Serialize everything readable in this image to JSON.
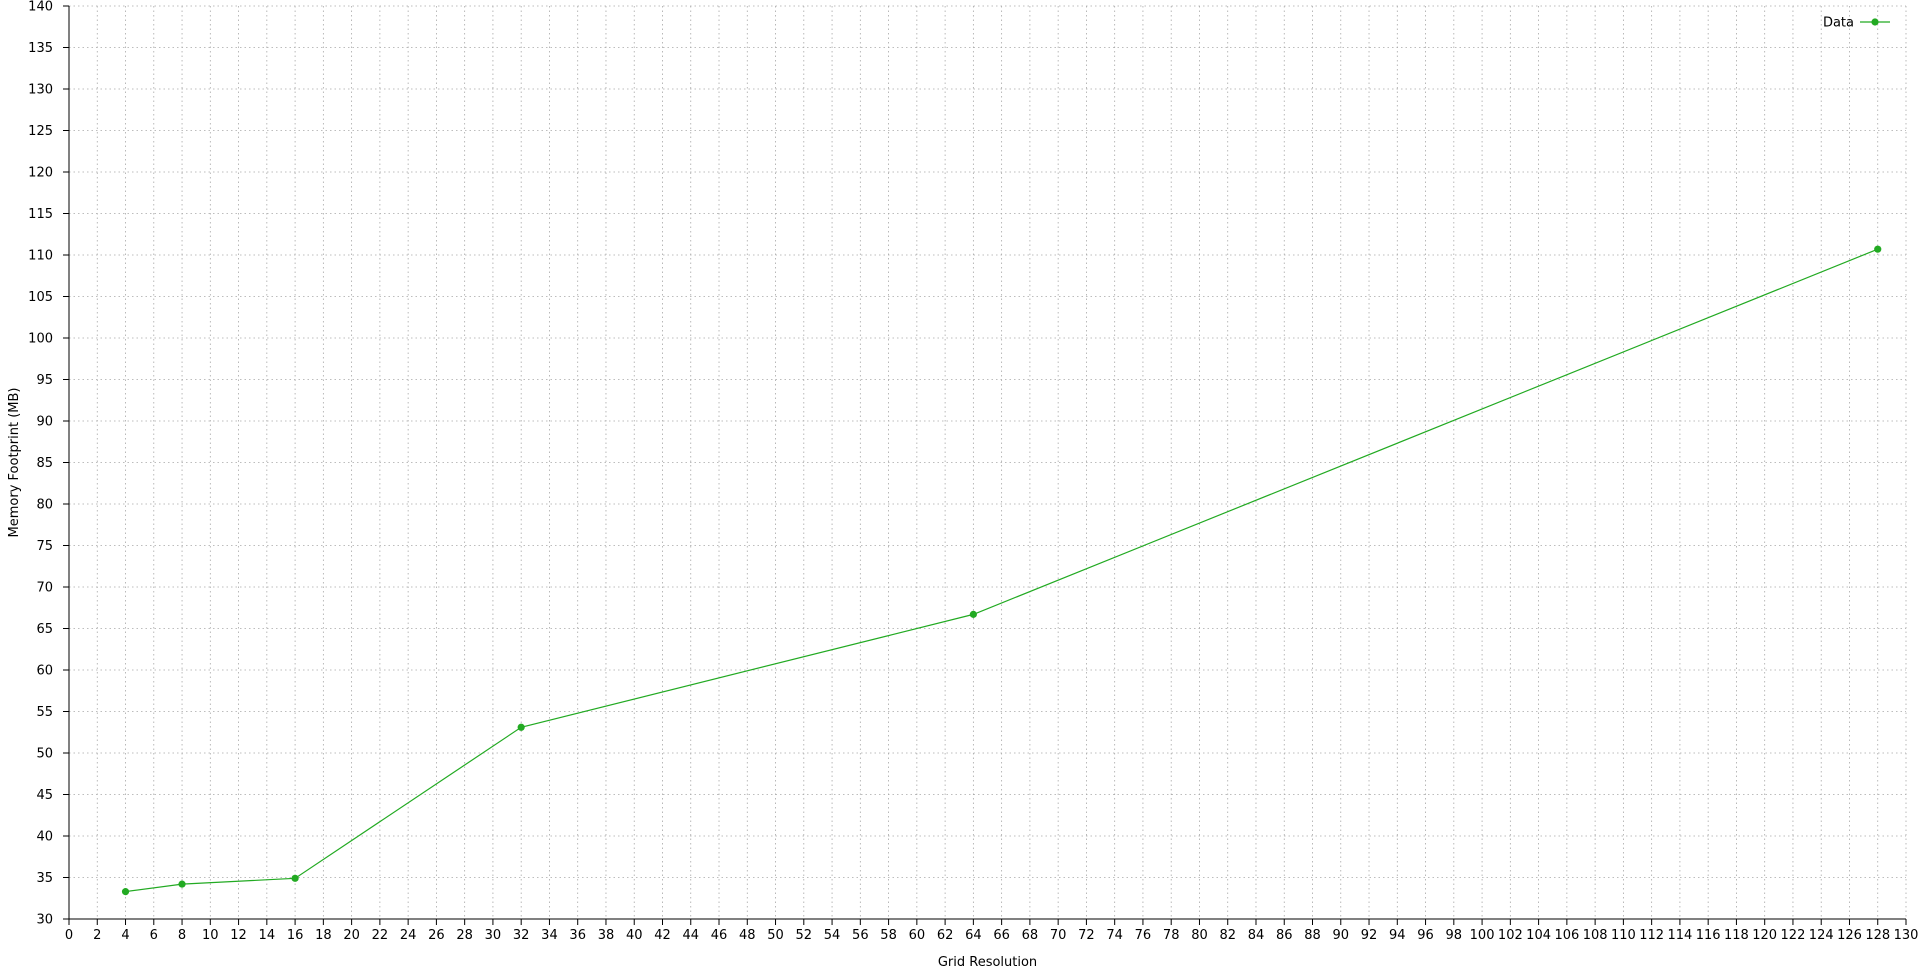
{
  "chart_data": {
    "type": "line",
    "title": "",
    "xlabel": "Grid Resolution",
    "ylabel": "Memory Footprint (MB)",
    "xlim": [
      0,
      130
    ],
    "ylim": [
      30,
      140
    ],
    "x_tick_step": 2,
    "y_tick_step": 5,
    "grid": true,
    "legend_position": "top-right",
    "series": [
      {
        "name": "Data",
        "color": "#22aa22",
        "x": [
          4,
          8,
          16,
          32,
          64,
          128
        ],
        "y": [
          33.3,
          34.2,
          34.9,
          53.1,
          66.7,
          110.7
        ]
      }
    ]
  }
}
